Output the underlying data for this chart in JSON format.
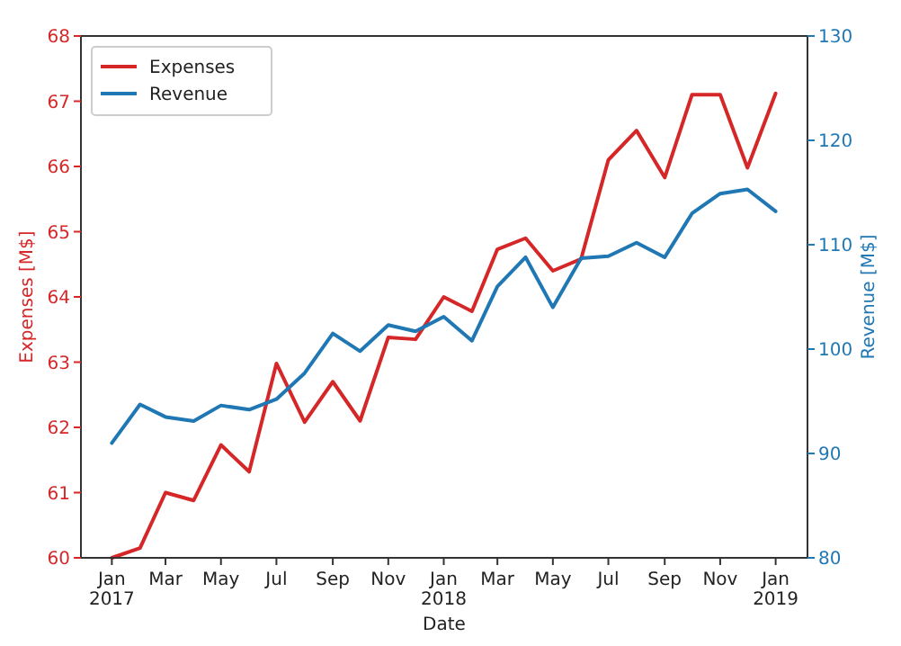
{
  "chart_data": {
    "type": "line",
    "xlabel": "Date",
    "ylabel": "Expenses [M$]",
    "y2label": "Revenue [M$]",
    "x": [
      "2017-01",
      "2017-02",
      "2017-03",
      "2017-04",
      "2017-05",
      "2017-06",
      "2017-07",
      "2017-08",
      "2017-09",
      "2017-10",
      "2017-11",
      "2017-12",
      "2018-01",
      "2018-02",
      "2018-03",
      "2018-04",
      "2018-05",
      "2018-06",
      "2018-07",
      "2018-08",
      "2018-09",
      "2018-10",
      "2018-11",
      "2018-12",
      "2019-01"
    ],
    "series": [
      {
        "name": "Expenses",
        "color": "#d62728",
        "values": [
          60.0,
          60.15,
          61.0,
          60.88,
          61.73,
          61.32,
          62.98,
          62.08,
          62.7,
          62.1,
          63.38,
          63.35,
          64.0,
          63.78,
          64.73,
          64.9,
          64.4,
          64.58,
          66.1,
          66.55,
          65.83,
          67.1,
          67.1,
          65.98,
          67.12
        ]
      },
      {
        "name": "Revenue",
        "color": "#1f77b4",
        "axis": "y2",
        "values": [
          91,
          94.7,
          93.5,
          93.1,
          94.6,
          94.2,
          95.2,
          97.7,
          101.5,
          99.8,
          102.3,
          101.7,
          103.1,
          100.8,
          106,
          108.8,
          104,
          108.7,
          108.9,
          110.2,
          108.8,
          113,
          114.9,
          115.3,
          113.2
        ]
      }
    ],
    "xlim": [
      "2016-11-28",
      "2019-02-05"
    ],
    "xticks": [
      {
        "value": "2017-01",
        "label": "Jan\n2017"
      },
      {
        "value": "2017-03",
        "label": "Mar"
      },
      {
        "value": "2017-05",
        "label": "May"
      },
      {
        "value": "2017-07",
        "label": "Jul"
      },
      {
        "value": "2017-09",
        "label": "Sep"
      },
      {
        "value": "2017-11",
        "label": "Nov"
      },
      {
        "value": "2018-01",
        "label": "Jan\n2018"
      },
      {
        "value": "2018-03",
        "label": "Mar"
      },
      {
        "value": "2018-05",
        "label": "May"
      },
      {
        "value": "2018-07",
        "label": "Jul"
      },
      {
        "value": "2018-09",
        "label": "Sep"
      },
      {
        "value": "2018-11",
        "label": "Nov"
      },
      {
        "value": "2019-01",
        "label": "Jan\n2019"
      }
    ],
    "ylim": [
      60,
      68
    ],
    "yticks": [
      60,
      61,
      62,
      63,
      64,
      65,
      66,
      67,
      68
    ],
    "y2lim": [
      80,
      130
    ],
    "y2ticks": [
      80,
      90,
      100,
      110,
      120,
      130
    ],
    "legend": "top left",
    "grid": false
  }
}
